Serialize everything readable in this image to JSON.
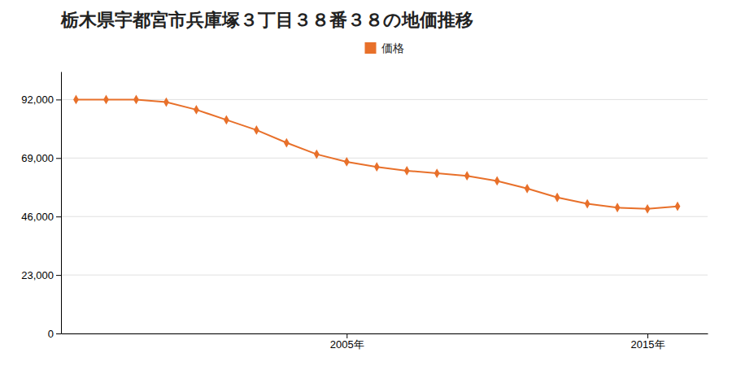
{
  "chart_data": {
    "type": "line",
    "title": "栃木県宇都宮市兵庫塚３丁目３８番３８の地価推移",
    "x": [
      1996,
      1997,
      1998,
      1999,
      2000,
      2001,
      2002,
      2003,
      2004,
      2005,
      2006,
      2007,
      2008,
      2009,
      2010,
      2011,
      2012,
      2013,
      2014,
      2015,
      2016
    ],
    "series": [
      {
        "name": "価格",
        "color": "#e8702a",
        "marker": "diamond",
        "values": [
          92000,
          92000,
          92000,
          91000,
          88000,
          84000,
          80000,
          75000,
          70500,
          67500,
          65500,
          64000,
          63000,
          62000,
          60000,
          57000,
          53500,
          51000,
          49500,
          49000,
          50000
        ]
      }
    ],
    "xlim": [
      1995.5,
      2017
    ],
    "xticks": [
      {
        "value": 2005,
        "label": "2005年"
      },
      {
        "value": 2015,
        "label": "2015年"
      }
    ],
    "ylim": [
      0,
      103000
    ],
    "yticks": [
      0,
      {
        "value": 23000,
        "label": "23,000"
      },
      {
        "value": 46000,
        "label": "46,000"
      },
      {
        "value": 69000,
        "label": "69,000"
      },
      {
        "value": 92000,
        "label": "92,000"
      }
    ],
    "grid": true,
    "legend": "top"
  }
}
